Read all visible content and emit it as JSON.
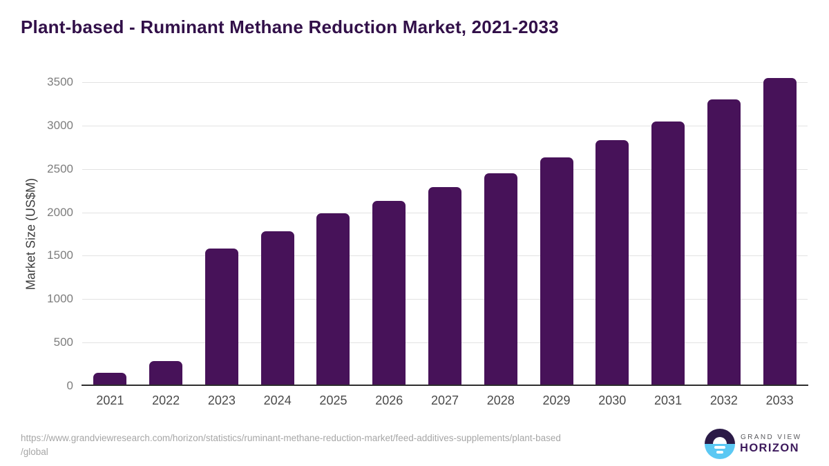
{
  "chart_data": {
    "type": "bar",
    "title": "Plant-based - Ruminant Methane Reduction Market, 2021-2033",
    "categories": [
      "2021",
      "2022",
      "2023",
      "2024",
      "2025",
      "2026",
      "2027",
      "2028",
      "2029",
      "2030",
      "2031",
      "2032",
      "2033"
    ],
    "values": [
      150,
      285,
      1580,
      1785,
      1990,
      2130,
      2290,
      2450,
      2630,
      2835,
      3050,
      3300,
      3550
    ],
    "xlabel": "",
    "ylabel": "Market Size (US$M)",
    "ylim": [
      0,
      3500
    ],
    "yticks": [
      0,
      500,
      1000,
      1500,
      2000,
      2500,
      3000,
      3500
    ],
    "grid": "horizontal",
    "legend": "none",
    "bar_color": "#471259"
  },
  "footer": {
    "source_line1": "https://www.grandviewresearch.com/horizon/statistics/ruminant-methane-reduction-market/feed-additives-supplements/plant-based",
    "source_line2": "/global",
    "logo": {
      "top_text": "GRAND VIEW",
      "bottom_text": "HORIZON"
    }
  },
  "colors": {
    "title": "#321049",
    "bar": "#471259",
    "gridline": "#e2e2e2",
    "axis_line": "#2d2d2d",
    "ytick_label": "#7d7d7d",
    "xtick_label": "#4a4a4a",
    "source_text": "#a6a6a6",
    "logo_dark": "#2b1a47",
    "logo_blue": "#5bc8f3",
    "logo_purple": "#3d1a5c"
  }
}
